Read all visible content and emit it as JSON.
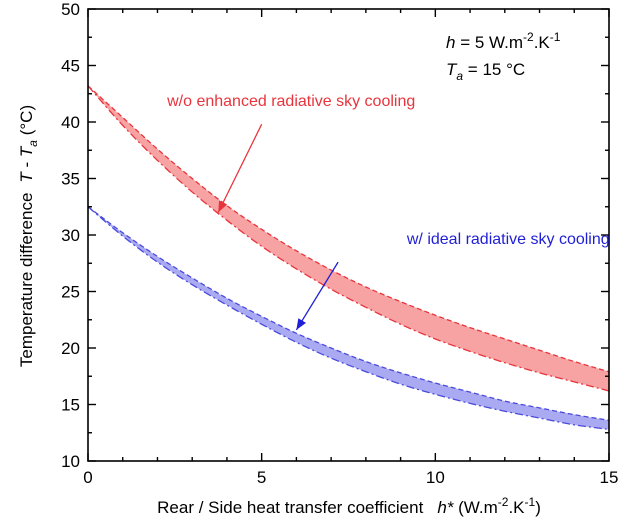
{
  "chart_data": {
    "type": "area",
    "title": "",
    "xlabel": {
      "text": "Rear / Side heat transfer coefficient",
      "var": "h*",
      "unit_prefix": " (W.m",
      "unit_exp1": "-2",
      "unit_mid": ".K",
      "unit_exp2": "-1",
      "unit_suffix": ")"
    },
    "ylabel": {
      "text": "Temperature difference",
      "var_t": "T",
      "minus": " - ",
      "var_ta": "T",
      "var_ta_sub": "a",
      "unit": " (°C)"
    },
    "xlim": [
      0,
      15
    ],
    "ylim": [
      10,
      50
    ],
    "xticks": [
      0,
      5,
      10,
      15
    ],
    "yticks": [
      10,
      15,
      20,
      25,
      30,
      35,
      40,
      45,
      50
    ],
    "grid": false,
    "x": [
      0,
      1,
      2,
      3,
      4,
      5,
      6,
      7,
      8,
      9,
      10,
      11,
      12,
      13,
      14,
      15
    ],
    "series": [
      {
        "name": "w/o enhanced radiative sky cooling",
        "color": "#e8343c",
        "fill": "#f7a3a3",
        "upper": [
          43.2,
          40.4,
          37.6,
          35.0,
          32.6,
          30.5,
          28.6,
          26.9,
          25.4,
          24.1,
          22.9,
          21.8,
          20.8,
          19.8,
          18.8,
          17.9
        ],
        "lower": [
          43.2,
          39.7,
          36.6,
          33.8,
          31.3,
          29.0,
          27.0,
          25.2,
          23.6,
          22.1,
          20.8,
          19.7,
          18.7,
          17.8,
          17.0,
          16.2
        ]
      },
      {
        "name": "w/ ideal radiative sky cooling",
        "color": "#4a4adc",
        "fill": "#aaaaf2",
        "upper": [
          32.5,
          30.2,
          28.1,
          26.2,
          24.4,
          22.8,
          21.3,
          20.0,
          18.8,
          17.8,
          16.9,
          16.1,
          15.3,
          14.7,
          14.1,
          13.6
        ],
        "lower": [
          32.5,
          29.9,
          27.6,
          25.6,
          23.8,
          22.1,
          20.5,
          19.1,
          17.9,
          16.8,
          15.9,
          15.1,
          14.4,
          13.8,
          13.2,
          12.8
        ]
      }
    ],
    "annotations": [
      {
        "text": "w/o enhanced radiative sky cooling",
        "color": "#e8343c",
        "text_at": [
          5.85,
          41.4
        ],
        "arrow_from": [
          5.0,
          39.8
        ],
        "arrow_to": [
          3.75,
          32.0
        ]
      },
      {
        "text": "w/ ideal radiative sky cooling",
        "color": "#1f1fd6",
        "text_at": [
          12.1,
          29.2
        ],
        "arrow_from": [
          7.2,
          27.6
        ],
        "arrow_to": [
          6.0,
          21.6
        ]
      }
    ],
    "params": {
      "h_var": "h",
      "h_eq": " = 5 W.m",
      "h_exp1": "-2",
      "h_mid": ".K",
      "h_exp2": "-1",
      "ta_var": "T",
      "ta_sub": "a",
      "ta_eq": " = 15 °C"
    }
  }
}
